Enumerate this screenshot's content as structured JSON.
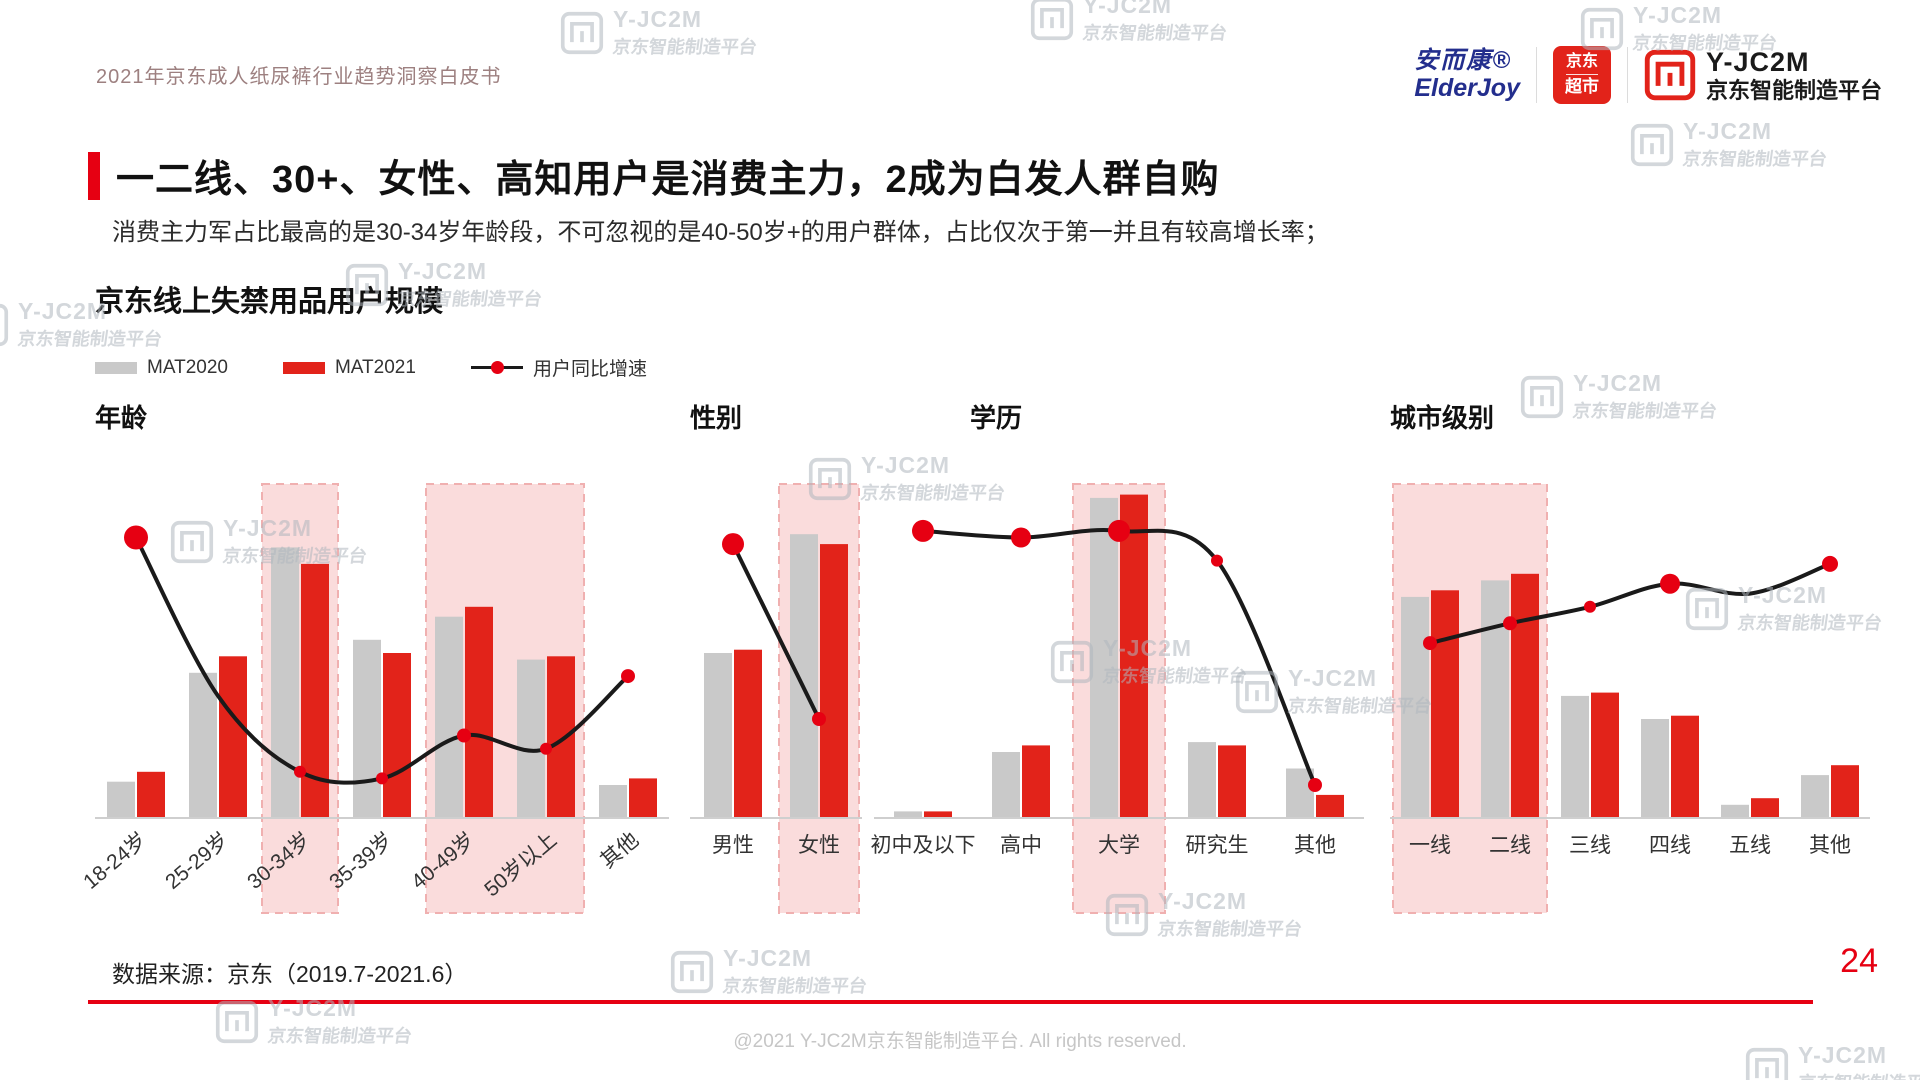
{
  "page": {
    "report_title": "2021年京东成人纸尿裤行业趋势洞察白皮书",
    "title": "一二线、30+、女性、高知用户是消费主力，2成为白发人群自购",
    "subtitle": "消费主力军占比最高的是30-34岁年龄段，不可忽视的是40-50岁+的用户群体，占比仅次于第一并且有较高增长率；",
    "data_source": "数据来源：京东（2019.7-2021.6）",
    "page_number": "24",
    "copyright": "@2021 Y-JC2M京东智能制造平台. All rights reserved."
  },
  "logos": {
    "elderjoy_cn": "安而康®",
    "elderjoy_en": "ElderJoy",
    "jd_line1": "京东",
    "jd_line2": "超市",
    "yjc2m_name": "Y-JC2M",
    "yjc2m_sub": "京东智能制造平台"
  },
  "watermark": {
    "brand": "Y-JC2M",
    "sub": "京东智能制造平台"
  },
  "colors": {
    "accent": "#e60012",
    "bar_gray": "#c9c9c9",
    "bar_red": "#e2231a",
    "line": "#1a1a1a",
    "highlight_fill": "#fadcdc",
    "highlight_border": "#f0b0b0",
    "axis": "#cfcfcf"
  },
  "chart_data": {
    "type": "grouped-bar+line",
    "title": "京东线上失禁用品用户规模",
    "ylim": [
      0,
      100
    ],
    "y_axis_visible": false,
    "legend": [
      {
        "label": "MAT2020",
        "kind": "bar",
        "color": "#c9c9c9"
      },
      {
        "label": "MAT2021",
        "kind": "bar",
        "color": "#e2231a"
      },
      {
        "label": "用户同比增速",
        "kind": "line-dot",
        "color": "#1a1a1a"
      }
    ],
    "charts": [
      {
        "group_label": "年龄",
        "categories": [
          "18-24岁",
          "25-29岁",
          "30-34岁",
          "35-39岁",
          "40-49岁",
          "50岁以上",
          "其他"
        ],
        "series": [
          {
            "name": "MAT2020",
            "values": [
              11,
              44,
              82,
              54,
              61,
              48,
              10
            ]
          },
          {
            "name": "MAT2021",
            "values": [
              14,
              49,
              77,
              50,
              64,
              49,
              12
            ]
          }
        ],
        "growth": {
          "name": "用户同比增速",
          "values": [
            85,
            37,
            14,
            12,
            25,
            21,
            43
          ],
          "dot_radius": [
            12,
            0,
            6,
            6,
            7,
            6,
            7
          ]
        },
        "highlights": [
          [
            2,
            2
          ],
          [
            4,
            5
          ]
        ],
        "rotate_labels": true
      },
      {
        "group_label": "性别",
        "categories": [
          "男性",
          "女性"
        ],
        "series": [
          {
            "name": "MAT2020",
            "values": [
              50,
              86
            ]
          },
          {
            "name": "MAT2021",
            "values": [
              51,
              83
            ]
          }
        ],
        "growth": {
          "name": "用户同比增速",
          "values": [
            83,
            30
          ],
          "dot_radius": [
            11,
            7
          ]
        },
        "highlights": [
          [
            1,
            1
          ]
        ],
        "rotate_labels": false
      },
      {
        "group_label": "学历",
        "categories": [
          "初中及以下",
          "高中",
          "大学",
          "研究生",
          "其他"
        ],
        "series": [
          {
            "name": "MAT2020",
            "values": [
              2,
              20,
              97,
              23,
              15
            ]
          },
          {
            "name": "MAT2021",
            "values": [
              2,
              22,
              98,
              22,
              7
            ]
          }
        ],
        "growth": {
          "name": "用户同比增速",
          "values": [
            87,
            85,
            87,
            78,
            10
          ],
          "dot_radius": [
            11,
            10,
            11,
            6,
            7
          ]
        },
        "highlights": [
          [
            2,
            2
          ]
        ],
        "rotate_labels": false
      },
      {
        "group_label": "城市级别",
        "categories": [
          "一线",
          "二线",
          "三线",
          "四线",
          "五线",
          "其他"
        ],
        "series": [
          {
            "name": "MAT2020",
            "values": [
              67,
              72,
              37,
              30,
              4,
              13
            ]
          },
          {
            "name": "MAT2021",
            "values": [
              69,
              74,
              38,
              31,
              6,
              16
            ]
          }
        ],
        "growth": {
          "name": "用户同比增速",
          "values": [
            53,
            59,
            64,
            71,
            68,
            77
          ],
          "dot_radius": [
            7,
            7,
            6,
            10,
            0,
            8
          ]
        },
        "highlights": [
          [
            0,
            1
          ]
        ],
        "rotate_labels": false
      }
    ]
  }
}
